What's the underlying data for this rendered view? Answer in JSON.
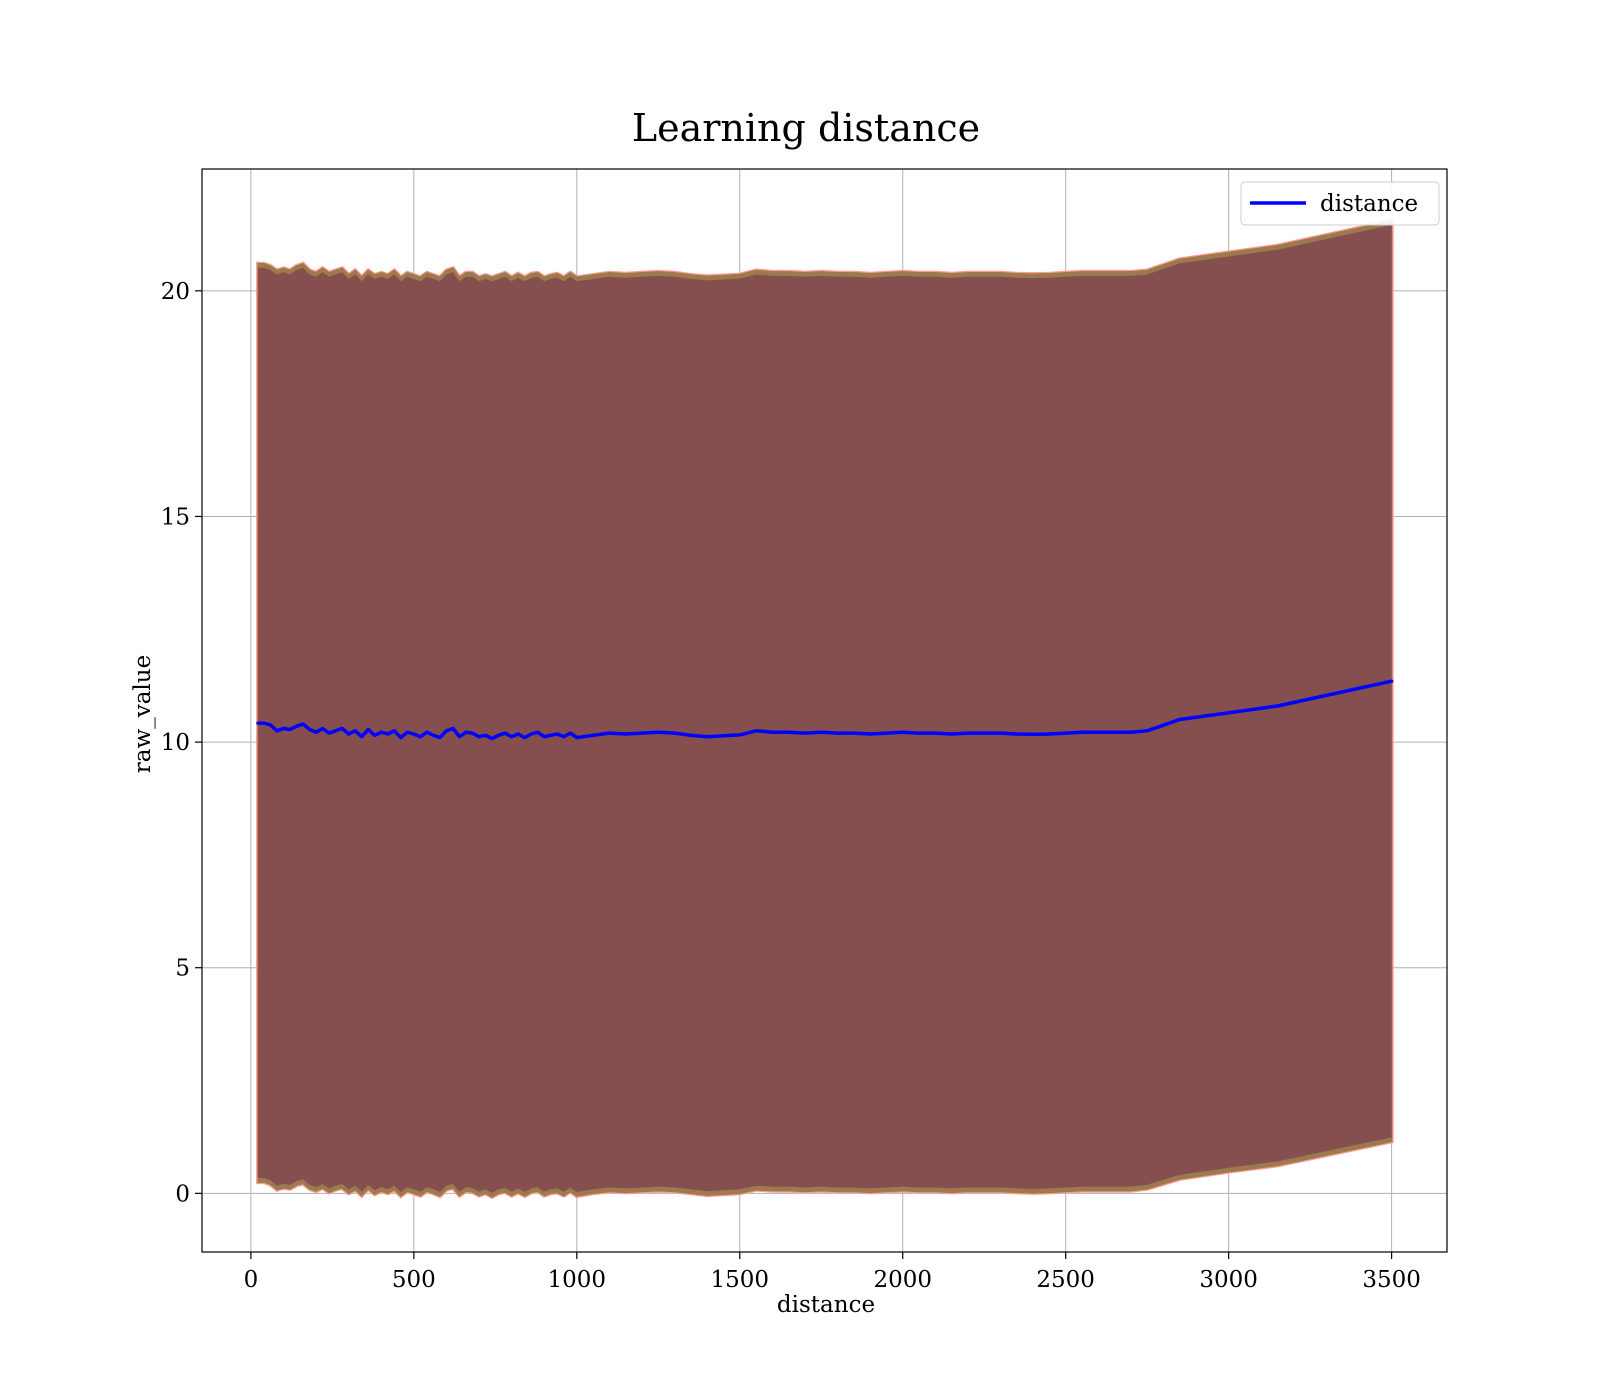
{
  "chart_data": {
    "type": "line",
    "title": "Learning distance",
    "xlabel": "distance",
    "ylabel": "raw_value",
    "xlim": [
      -150,
      3670
    ],
    "ylim": [
      -1.3,
      22.7
    ],
    "xticks": [
      0,
      500,
      1000,
      1500,
      2000,
      2500,
      3000,
      3500
    ],
    "yticks": [
      0,
      5,
      10,
      15,
      20
    ],
    "grid": true,
    "legend": "top-right",
    "colors": {
      "line": "#0000ff",
      "band_fill": "#7b3f4f",
      "band_edge_outer": "#ff9a90",
      "band_edge_inner": "#9c7a4e",
      "grid": "#b0b0b0"
    },
    "series": [
      {
        "name": "distance",
        "x": [
          22,
          40,
          60,
          80,
          100,
          120,
          140,
          160,
          180,
          200,
          220,
          240,
          260,
          280,
          300,
          320,
          340,
          360,
          380,
          400,
          420,
          440,
          460,
          480,
          500,
          520,
          540,
          560,
          580,
          600,
          620,
          640,
          660,
          680,
          700,
          720,
          740,
          760,
          780,
          800,
          820,
          840,
          860,
          880,
          900,
          920,
          940,
          960,
          980,
          1000,
          1050,
          1100,
          1150,
          1200,
          1250,
          1300,
          1350,
          1400,
          1450,
          1500,
          1550,
          1600,
          1650,
          1700,
          1750,
          1800,
          1850,
          1900,
          1950,
          2000,
          2050,
          2100,
          2150,
          2200,
          2250,
          2300,
          2350,
          2400,
          2450,
          2500,
          2550,
          2600,
          2650,
          2700,
          2750,
          2850,
          3000,
          3150,
          3500
        ],
        "y": [
          10.42,
          10.42,
          10.38,
          10.25,
          10.3,
          10.28,
          10.35,
          10.4,
          10.28,
          10.22,
          10.3,
          10.2,
          10.25,
          10.3,
          10.18,
          10.25,
          10.12,
          10.28,
          10.15,
          10.22,
          10.18,
          10.25,
          10.1,
          10.22,
          10.18,
          10.12,
          10.22,
          10.15,
          10.1,
          10.25,
          10.3,
          10.12,
          10.22,
          10.2,
          10.12,
          10.15,
          10.08,
          10.15,
          10.2,
          10.12,
          10.18,
          10.1,
          10.18,
          10.22,
          10.12,
          10.15,
          10.18,
          10.12,
          10.2,
          10.1,
          10.15,
          10.2,
          10.18,
          10.2,
          10.22,
          10.2,
          10.15,
          10.12,
          10.14,
          10.16,
          10.25,
          10.22,
          10.22,
          10.2,
          10.22,
          10.2,
          10.2,
          10.18,
          10.2,
          10.22,
          10.2,
          10.2,
          10.18,
          10.2,
          10.2,
          10.2,
          10.18,
          10.17,
          10.18,
          10.2,
          10.22,
          10.22,
          10.22,
          10.22,
          10.25,
          10.5,
          10.65,
          10.8,
          11.35
        ]
      }
    ],
    "band": {
      "upper": [
        20.6,
        20.6,
        20.55,
        20.45,
        20.5,
        20.45,
        20.55,
        20.6,
        20.45,
        20.4,
        20.5,
        20.4,
        20.45,
        20.5,
        20.35,
        20.45,
        20.3,
        20.45,
        20.35,
        20.4,
        20.35,
        20.45,
        20.3,
        20.4,
        20.35,
        20.3,
        20.4,
        20.35,
        20.3,
        20.45,
        20.5,
        20.3,
        20.4,
        20.4,
        20.3,
        20.35,
        20.3,
        20.35,
        20.4,
        20.3,
        20.38,
        20.3,
        20.38,
        20.4,
        20.3,
        20.35,
        20.38,
        20.3,
        20.4,
        20.3,
        20.35,
        20.4,
        20.38,
        20.4,
        20.42,
        20.4,
        20.35,
        20.32,
        20.34,
        20.36,
        20.45,
        20.42,
        20.42,
        20.4,
        20.42,
        20.4,
        20.4,
        20.38,
        20.4,
        20.42,
        20.4,
        20.4,
        20.38,
        20.4,
        20.4,
        20.4,
        20.38,
        20.37,
        20.38,
        20.4,
        20.42,
        20.42,
        20.42,
        20.42,
        20.45,
        20.7,
        20.85,
        21.0,
        21.55
      ],
      "lower": [
        0.25,
        0.25,
        0.2,
        0.08,
        0.12,
        0.1,
        0.18,
        0.22,
        0.1,
        0.05,
        0.12,
        0.02,
        0.08,
        0.12,
        0.0,
        0.08,
        -0.05,
        0.1,
        -0.02,
        0.05,
        0.0,
        0.08,
        -0.06,
        0.05,
        0.0,
        -0.05,
        0.05,
        0.0,
        -0.06,
        0.08,
        0.12,
        -0.05,
        0.05,
        0.03,
        -0.05,
        0.0,
        -0.08,
        0.0,
        0.03,
        -0.05,
        0.02,
        -0.06,
        0.02,
        0.05,
        -0.05,
        0.0,
        0.02,
        -0.05,
        0.04,
        -0.06,
        0.0,
        0.04,
        0.02,
        0.04,
        0.06,
        0.04,
        0.0,
        -0.04,
        -0.02,
        0.0,
        0.08,
        0.06,
        0.06,
        0.04,
        0.06,
        0.04,
        0.04,
        0.02,
        0.04,
        0.06,
        0.04,
        0.04,
        0.02,
        0.04,
        0.04,
        0.04,
        0.02,
        0.01,
        0.02,
        0.04,
        0.06,
        0.06,
        0.06,
        0.06,
        0.1,
        0.32,
        0.48,
        0.62,
        1.15
      ]
    }
  }
}
